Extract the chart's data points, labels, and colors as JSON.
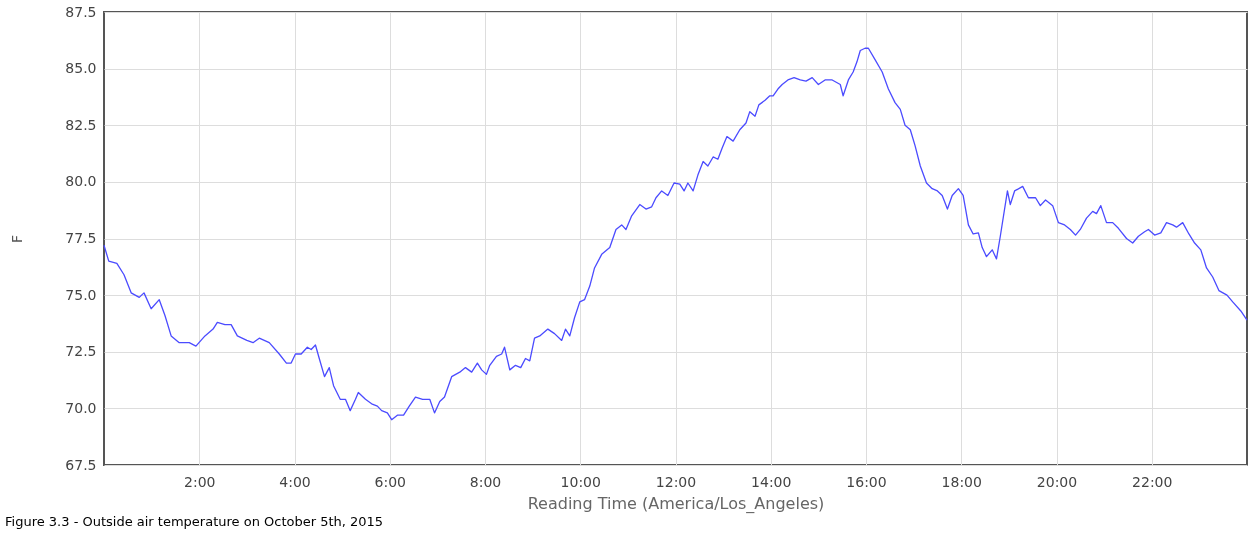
{
  "chart_data": {
    "type": "line",
    "xlabel": "Reading Time (America/Los_Angeles)",
    "ylabel": "F",
    "annotations": [
      "Figure 3.3 - Outside air temperature on October 5th, 2015"
    ],
    "xlim": [
      0,
      24
    ],
    "xticks": [
      {
        "value": 2,
        "label": "2:00"
      },
      {
        "value": 4,
        "label": "4:00"
      },
      {
        "value": 6,
        "label": "6:00"
      },
      {
        "value": 8,
        "label": "8:00"
      },
      {
        "value": 10,
        "label": "10:00"
      },
      {
        "value": 12,
        "label": "12:00"
      },
      {
        "value": 14,
        "label": "14:00"
      },
      {
        "value": 16,
        "label": "16:00"
      },
      {
        "value": 18,
        "label": "18:00"
      },
      {
        "value": 20,
        "label": "20:00"
      },
      {
        "value": 22,
        "label": "22:00"
      }
    ],
    "ylim": [
      67.5,
      87.5
    ],
    "yticks": [
      67.5,
      {
        "value": 70,
        "label": "70.0"
      },
      72.5,
      {
        "value": 75,
        "label": "75.0"
      },
      77.5,
      {
        "value": 80,
        "label": "80.0"
      },
      82.5,
      {
        "value": 85,
        "label": "85.0"
      },
      87.5
    ],
    "grid": true,
    "marker": "none",
    "line_style": "solid",
    "series": [
      {
        "color": "#4b4bff",
        "x": [
          0,
          0.1,
          0.27,
          0.42,
          0.57,
          0.74,
          0.84,
          0.99,
          1.16,
          1.28,
          1.41,
          1.58,
          1.79,
          1.93,
          2.12,
          2.29,
          2.38,
          2.54,
          2.67,
          2.8,
          3.0,
          3.13,
          3.26,
          3.47,
          3.68,
          3.83,
          3.93,
          4.02,
          4.14,
          4.27,
          4.35,
          4.44,
          4.52,
          4.63,
          4.73,
          4.82,
          4.96,
          5.07,
          5.17,
          5.28,
          5.34,
          5.49,
          5.62,
          5.74,
          5.83,
          5.95,
          6.04,
          6.16,
          6.29,
          6.41,
          6.54,
          6.69,
          6.84,
          6.94,
          7.05,
          7.15,
          7.3,
          7.47,
          7.59,
          7.72,
          7.84,
          7.93,
          8.03,
          8.1,
          8.24,
          8.35,
          8.41,
          8.52,
          8.64,
          8.75,
          8.85,
          8.94,
          9.04,
          9.15,
          9.32,
          9.46,
          9.61,
          9.69,
          9.78,
          9.88,
          9.99,
          10.09,
          10.2,
          10.3,
          10.45,
          10.62,
          10.75,
          10.87,
          10.96,
          11.08,
          11.25,
          11.38,
          11.5,
          11.59,
          11.71,
          11.84,
          11.97,
          12.09,
          12.18,
          12.26,
          12.37,
          12.47,
          12.58,
          12.68,
          12.79,
          12.89,
          12.98,
          13.08,
          13.21,
          13.35,
          13.48,
          13.56,
          13.67,
          13.75,
          13.88,
          13.98,
          14.05,
          14.15,
          14.24,
          14.36,
          14.49,
          14.62,
          14.74,
          14.87,
          15.0,
          15.14,
          15.29,
          15.46,
          15.52,
          15.63,
          15.73,
          15.81,
          15.88,
          15.98,
          16.05,
          16.19,
          16.34,
          16.47,
          16.61,
          16.72,
          16.82,
          16.93,
          17.03,
          17.14,
          17.27,
          17.39,
          17.5,
          17.6,
          17.71,
          17.81,
          17.94,
          18.04,
          18.15,
          18.25,
          18.36,
          18.44,
          18.53,
          18.65,
          18.74,
          18.82,
          18.97,
          19.03,
          19.12,
          19.29,
          19.41,
          19.56,
          19.66,
          19.77,
          19.92,
          20.04,
          20.17,
          20.29,
          20.4,
          20.5,
          20.63,
          20.76,
          20.84,
          20.93,
          21.05,
          21.18,
          21.3,
          21.47,
          21.6,
          21.72,
          21.85,
          21.93,
          22.06,
          22.19,
          22.31,
          22.44,
          22.52,
          22.65,
          22.78,
          22.9,
          23.03,
          23.15,
          23.28,
          23.41,
          23.58,
          23.7,
          23.87,
          24.0
        ],
        "values": [
          77.2,
          76.5,
          76.4,
          75.9,
          75.1,
          74.9,
          75.1,
          74.4,
          74.8,
          74.1,
          73.2,
          72.9,
          72.9,
          72.75,
          73.2,
          73.5,
          73.8,
          73.7,
          73.7,
          73.2,
          73.0,
          72.9,
          73.1,
          72.9,
          72.4,
          72.0,
          72.0,
          72.4,
          72.4,
          72.7,
          72.6,
          72.8,
          72.2,
          71.4,
          71.8,
          71.0,
          70.4,
          70.4,
          69.9,
          70.4,
          70.7,
          70.4,
          70.2,
          70.1,
          69.9,
          69.8,
          69.5,
          69.7,
          69.7,
          70.1,
          70.5,
          70.4,
          70.4,
          69.8,
          70.3,
          70.5,
          71.4,
          71.6,
          71.8,
          71.6,
          72.0,
          71.7,
          71.5,
          71.9,
          72.3,
          72.4,
          72.7,
          71.7,
          71.9,
          71.8,
          72.2,
          72.1,
          73.1,
          73.2,
          73.5,
          73.3,
          73.0,
          73.5,
          73.2,
          74.0,
          74.7,
          74.8,
          75.4,
          76.2,
          76.8,
          77.1,
          77.9,
          78.1,
          77.9,
          78.5,
          79.0,
          78.8,
          78.9,
          79.3,
          79.6,
          79.4,
          79.95,
          79.9,
          79.6,
          79.95,
          79.6,
          80.3,
          80.9,
          80.7,
          81.1,
          81.0,
          81.5,
          82.0,
          81.8,
          82.3,
          82.6,
          83.1,
          82.9,
          83.4,
          83.6,
          83.8,
          83.8,
          84.1,
          84.3,
          84.5,
          84.6,
          84.5,
          84.45,
          84.6,
          84.3,
          84.5,
          84.5,
          84.3,
          83.8,
          84.5,
          84.85,
          85.3,
          85.8,
          85.9,
          85.9,
          85.4,
          84.85,
          84.1,
          83.5,
          83.2,
          82.5,
          82.3,
          81.6,
          80.7,
          79.95,
          79.7,
          79.6,
          79.4,
          78.8,
          79.4,
          79.7,
          79.4,
          78.1,
          77.7,
          77.75,
          77.1,
          76.7,
          77.0,
          76.6,
          77.6,
          79.6,
          79.0,
          79.6,
          79.8,
          79.3,
          79.3,
          78.95,
          79.2,
          78.95,
          78.2,
          78.1,
          77.9,
          77.65,
          77.9,
          78.4,
          78.7,
          78.6,
          78.95,
          78.2,
          78.2,
          77.95,
          77.5,
          77.3,
          77.6,
          77.8,
          77.9,
          77.65,
          77.75,
          78.2,
          78.1,
          78.0,
          78.2,
          77.7,
          77.3,
          77.0,
          76.2,
          75.8,
          75.2,
          75.0,
          74.7,
          74.3,
          73.9
        ]
      }
    ]
  }
}
